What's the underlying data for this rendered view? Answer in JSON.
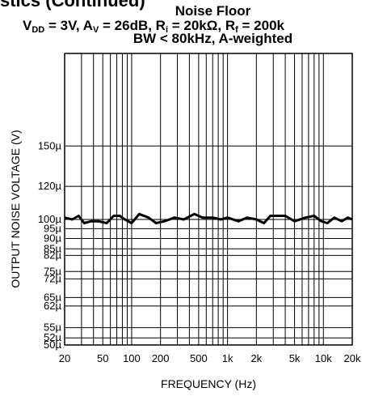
{
  "section_header": "stics (Continued)",
  "chart_data": {
    "type": "line",
    "title": "Noise Floor",
    "subtitle_parts": {
      "vdd_label": "V",
      "vdd_sub": "DD",
      "vdd_value": " = 3V, A",
      "av_sub": "V",
      "av_value": " = 26dB, R",
      "ri_sub": "i",
      "ri_value": " = 20kΩ, R",
      "rf_sub": "f",
      "rf_value": " = 200k"
    },
    "subtitle_line2": "BW < 80kHz, A-weighted",
    "xlabel": "FREQUENCY (Hz)",
    "ylabel": "OUTPUT NOISE VOLTAGE (V)",
    "x_scale": "log",
    "y_scale": "log",
    "xlim": [
      20,
      20000
    ],
    "ylim": [
      5e-05,
      0.00025
    ],
    "x_ticks": [
      20,
      50,
      100,
      200,
      500,
      1000,
      2000,
      5000,
      10000,
      20000
    ],
    "x_tick_labels": [
      "20",
      "50",
      "100",
      "200",
      "500",
      "1k",
      "2k",
      "5k",
      "10k",
      "20k"
    ],
    "y_ticks": [
      5e-05,
      5.2e-05,
      5.5e-05,
      6.2e-05,
      6.5e-05,
      7.2e-05,
      7.5e-05,
      8.2e-05,
      8.5e-05,
      9e-05,
      9.5e-05,
      0.0001,
      0.00012,
      0.00015
    ],
    "y_tick_labels": [
      "50µ",
      "52µ",
      "55µ",
      "62µ",
      "65µ",
      "72µ",
      "75µ",
      "82µ",
      "85µ",
      "90µ",
      "95µ",
      "100µ",
      "120µ",
      "150µ"
    ],
    "grid": true,
    "series": [
      {
        "x": [
          20,
          24,
          28,
          32,
          38,
          45,
          55,
          65,
          75,
          85,
          100,
          120,
          150,
          180,
          220,
          280,
          350,
          450,
          550,
          700,
          850,
          1000,
          1300,
          1600,
          2000,
          2400,
          2800,
          3300,
          4000,
          5000,
          6500,
          8000,
          9500,
          11000,
          13000,
          15500,
          18000,
          20000
        ],
        "y": [
          0.000101,
          0.0001,
          0.000102,
          9.8e-05,
          9.9e-05,
          9.9e-05,
          9.8e-05,
          0.000102,
          0.000102,
          0.0001,
          9.8e-05,
          0.000103,
          0.000101,
          9.8e-05,
          9.9e-05,
          0.000101,
          0.0001,
          0.000103,
          0.000101,
          0.000101,
          0.0001,
          0.000101,
          9.9e-05,
          0.000101,
          0.0001,
          9.8e-05,
          0.000102,
          0.000102,
          0.000102,
          9.9e-05,
          0.000101,
          0.000102,
          9.9e-05,
          9.8e-05,
          0.000101,
          9.9e-05,
          0.000101,
          0.0001
        ]
      }
    ]
  }
}
